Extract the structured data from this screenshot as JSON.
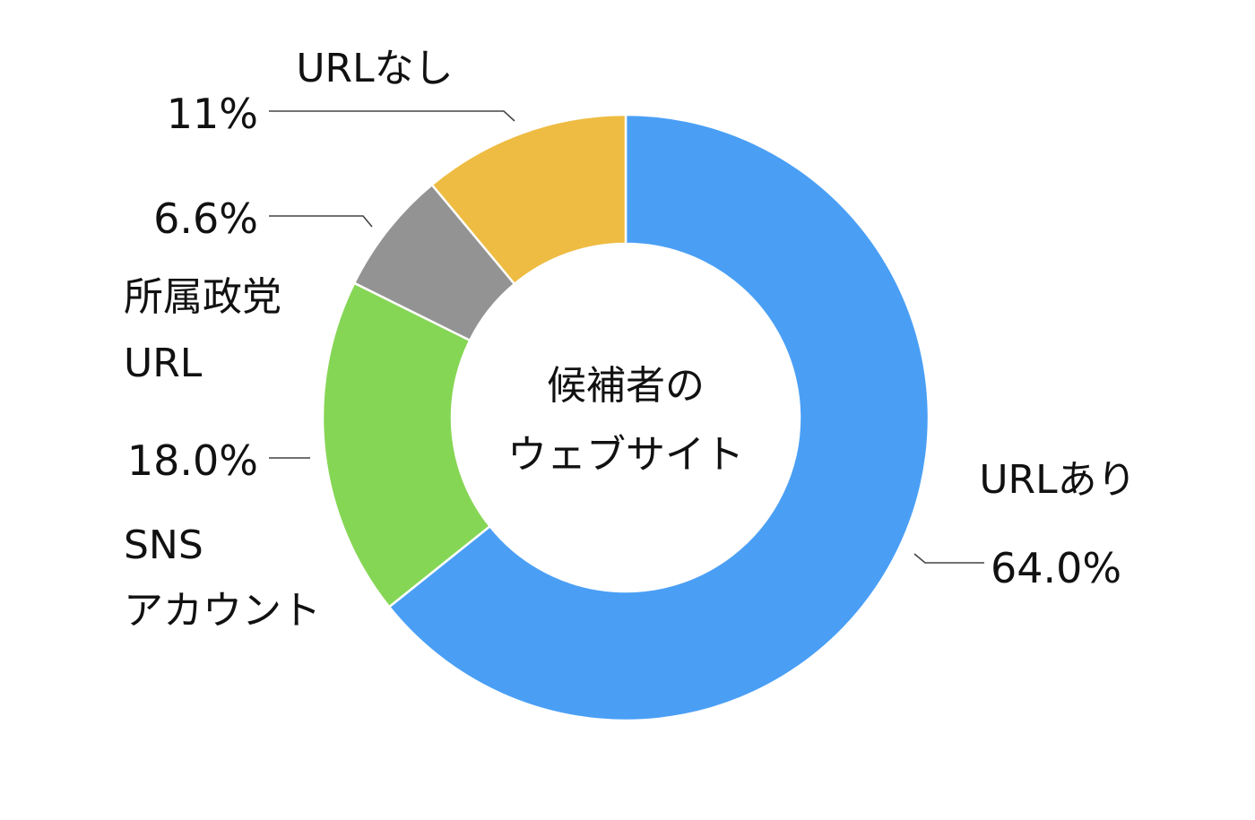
{
  "chart_data": {
    "type": "pie",
    "donut": true,
    "center_label": [
      "候補者の",
      "ウェブサイト"
    ],
    "start_angle_deg": 0,
    "direction": "clockwise",
    "slices": [
      {
        "label": [
          "URLあり"
        ],
        "value": 64.0,
        "display": "64.0%",
        "color": "#4a9ff5"
      },
      {
        "label": [
          "SNS",
          "アカウント"
        ],
        "value": 18.0,
        "display": "18.0%",
        "color": "#86d655"
      },
      {
        "label": [
          "所属政党",
          "URL"
        ],
        "value": 6.6,
        "display": "6.6%",
        "color": "#939393"
      },
      {
        "label": [
          "URLなし"
        ],
        "value": 11.0,
        "display": "11%",
        "color": "#eebc42"
      }
    ]
  }
}
